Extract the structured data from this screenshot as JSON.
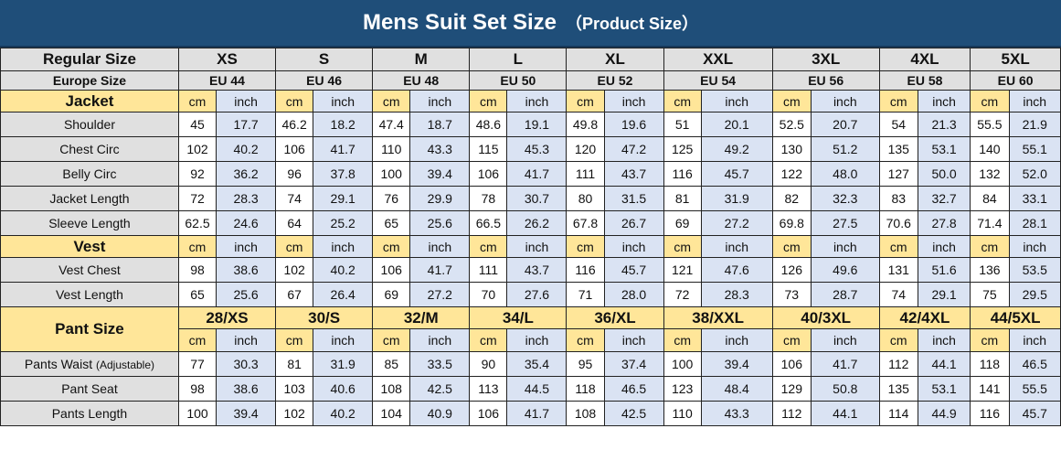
{
  "title": {
    "main": "Mens Suit Set Size",
    "sub": "（Product Size）"
  },
  "units": {
    "cm": "cm",
    "inch": "inch"
  },
  "regular_label": "Regular Size",
  "europe_label": "Europe Size",
  "sizes": [
    "XS",
    "S",
    "M",
    "L",
    "XL",
    "XXL",
    "3XL",
    "4XL",
    "5XL"
  ],
  "eu_sizes": [
    "EU 44",
    "EU 46",
    "EU 48",
    "EU 50",
    "EU 52",
    "EU 54",
    "EU 56",
    "EU 58",
    "EU 60"
  ],
  "jacket": {
    "label": "Jacket",
    "rows": [
      {
        "name": "Shoulder",
        "values": [
          "45",
          "17.7",
          "46.2",
          "18.2",
          "47.4",
          "18.7",
          "48.6",
          "19.1",
          "49.8",
          "19.6",
          "51",
          "20.1",
          "52.5",
          "20.7",
          "54",
          "21.3",
          "55.5",
          "21.9"
        ]
      },
      {
        "name": "Chest Circ",
        "values": [
          "102",
          "40.2",
          "106",
          "41.7",
          "110",
          "43.3",
          "115",
          "45.3",
          "120",
          "47.2",
          "125",
          "49.2",
          "130",
          "51.2",
          "135",
          "53.1",
          "140",
          "55.1"
        ]
      },
      {
        "name": "Belly Circ",
        "values": [
          "92",
          "36.2",
          "96",
          "37.8",
          "100",
          "39.4",
          "106",
          "41.7",
          "111",
          "43.7",
          "116",
          "45.7",
          "122",
          "48.0",
          "127",
          "50.0",
          "132",
          "52.0"
        ]
      },
      {
        "name": "Jacket Length",
        "values": [
          "72",
          "28.3",
          "74",
          "29.1",
          "76",
          "29.9",
          "78",
          "30.7",
          "80",
          "31.5",
          "81",
          "31.9",
          "82",
          "32.3",
          "83",
          "32.7",
          "84",
          "33.1"
        ]
      },
      {
        "name": "Sleeve Length",
        "values": [
          "62.5",
          "24.6",
          "64",
          "25.2",
          "65",
          "25.6",
          "66.5",
          "26.2",
          "67.8",
          "26.7",
          "69",
          "27.2",
          "69.8",
          "27.5",
          "70.6",
          "27.8",
          "71.4",
          "28.1"
        ]
      }
    ]
  },
  "vest": {
    "label": "Vest",
    "rows": [
      {
        "name": "Vest Chest",
        "values": [
          "98",
          "38.6",
          "102",
          "40.2",
          "106",
          "41.7",
          "111",
          "43.7",
          "116",
          "45.7",
          "121",
          "47.6",
          "126",
          "49.6",
          "131",
          "51.6",
          "136",
          "53.5"
        ]
      },
      {
        "name": "Vest Length",
        "values": [
          "65",
          "25.6",
          "67",
          "26.4",
          "69",
          "27.2",
          "70",
          "27.6",
          "71",
          "28.0",
          "72",
          "28.3",
          "73",
          "28.7",
          "74",
          "29.1",
          "75",
          "29.5"
        ]
      }
    ]
  },
  "pant": {
    "label": "Pant Size",
    "sizes": [
      "28/XS",
      "30/S",
      "32/M",
      "34/L",
      "36/XL",
      "38/XXL",
      "40/3XL",
      "42/4XL",
      "44/5XL"
    ],
    "rows": [
      {
        "name": "Pants Waist",
        "name_suffix": "(Adjustable)",
        "values": [
          "77",
          "30.3",
          "81",
          "31.9",
          "85",
          "33.5",
          "90",
          "35.4",
          "95",
          "37.4",
          "100",
          "39.4",
          "106",
          "41.7",
          "112",
          "44.1",
          "118",
          "46.5"
        ]
      },
      {
        "name": "Pant Seat",
        "values": [
          "98",
          "38.6",
          "103",
          "40.6",
          "108",
          "42.5",
          "113",
          "44.5",
          "118",
          "46.5",
          "123",
          "48.4",
          "129",
          "50.8",
          "135",
          "53.1",
          "141",
          "55.5"
        ]
      },
      {
        "name": "Pants Length",
        "values": [
          "100",
          "39.4",
          "102",
          "40.2",
          "104",
          "40.9",
          "106",
          "41.7",
          "108",
          "42.5",
          "110",
          "43.3",
          "112",
          "44.1",
          "114",
          "44.9",
          "116",
          "45.7"
        ]
      }
    ]
  }
}
